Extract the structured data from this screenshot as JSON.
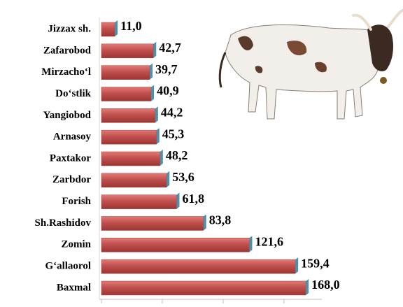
{
  "chart_data": {
    "type": "bar",
    "orientation": "horizontal",
    "categories": [
      "Jizzax sh.",
      "Zafarobod",
      "Mirzacho‘l",
      "Do‘stlik",
      "Yangiobod",
      "Arnasoy",
      "Paxtakor",
      "Zarbdor",
      "Forish",
      "Sh.Rashidov",
      "Zomin",
      "G‘allaorol",
      "Baxmal"
    ],
    "values": [
      11.0,
      42.7,
      39.7,
      40.9,
      44.2,
      45.3,
      48.2,
      53.6,
      61.8,
      83.8,
      121.6,
      159.4,
      168.0
    ],
    "value_labels": [
      "11,0",
      "42,7",
      "39,7",
      "40,9",
      "44,2",
      "45,3",
      "48,2",
      "53,6",
      "61,8",
      "83,8",
      "121,6",
      "159,4",
      "168,0"
    ],
    "color": "#c0504d",
    "xlim": [
      0,
      180
    ],
    "xticks": [
      0,
      50,
      100,
      150
    ]
  }
}
